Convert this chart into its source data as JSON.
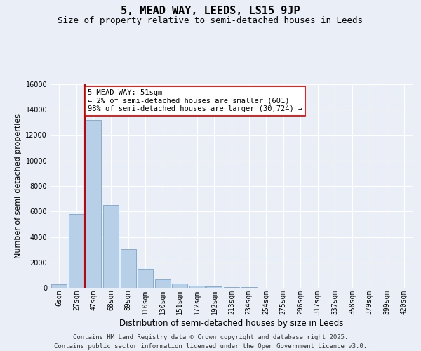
{
  "title": "5, MEAD WAY, LEEDS, LS15 9JP",
  "subtitle": "Size of property relative to semi-detached houses in Leeds",
  "xlabel": "Distribution of semi-detached houses by size in Leeds",
  "ylabel": "Number of semi-detached properties",
  "categories": [
    "6sqm",
    "27sqm",
    "47sqm",
    "68sqm",
    "89sqm",
    "110sqm",
    "130sqm",
    "151sqm",
    "172sqm",
    "192sqm",
    "213sqm",
    "234sqm",
    "254sqm",
    "275sqm",
    "296sqm",
    "317sqm",
    "337sqm",
    "358sqm",
    "379sqm",
    "399sqm",
    "420sqm"
  ],
  "values": [
    300,
    5800,
    13200,
    6500,
    3050,
    1480,
    650,
    320,
    190,
    120,
    60,
    50,
    20,
    10,
    5,
    0,
    0,
    0,
    0,
    0,
    0
  ],
  "bar_color": "#b8cfe8",
  "bar_edge_color": "#6699cc",
  "vline_x_index": 1.5,
  "vline_color": "#cc0000",
  "annotation_text": "5 MEAD WAY: 51sqm\n← 2% of semi-detached houses are smaller (601)\n98% of semi-detached houses are larger (30,724) →",
  "annotation_box_facecolor": "#ffffff",
  "annotation_box_edgecolor": "#cc0000",
  "ylim": [
    0,
    16000
  ],
  "yticks": [
    0,
    2000,
    4000,
    6000,
    8000,
    10000,
    12000,
    14000,
    16000
  ],
  "background_color": "#eaeff7",
  "grid_color": "#ffffff",
  "footer_line1": "Contains HM Land Registry data © Crown copyright and database right 2025.",
  "footer_line2": "Contains public sector information licensed under the Open Government Licence v3.0.",
  "title_fontsize": 11,
  "subtitle_fontsize": 9,
  "xlabel_fontsize": 8.5,
  "ylabel_fontsize": 8,
  "tick_fontsize": 7,
  "footer_fontsize": 6.5,
  "ann_fontsize": 7.5
}
